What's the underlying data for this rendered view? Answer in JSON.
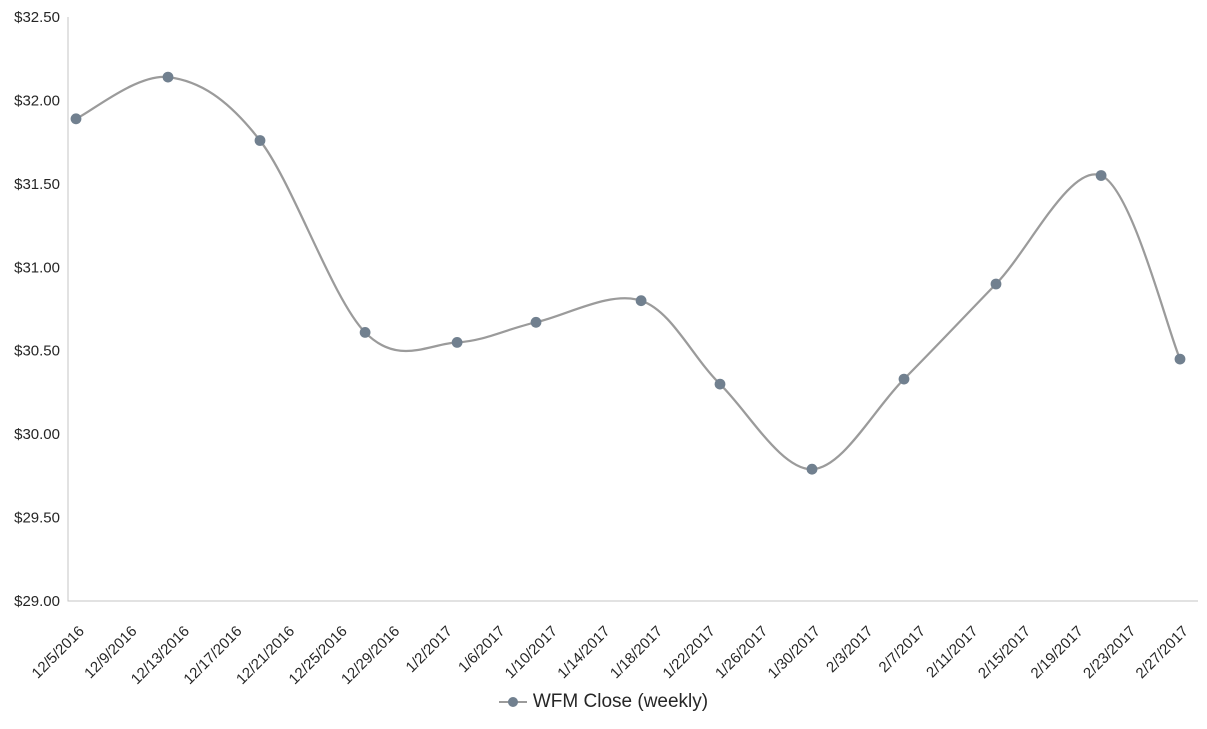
{
  "chart_data": {
    "type": "line",
    "title": "",
    "smooth": true,
    "grid": false,
    "series": [
      {
        "name": "WFM Close (weekly)",
        "points": [
          {
            "date": "12/5/2016",
            "close": 31.89
          },
          {
            "date": "12/12/2016",
            "close": 32.14
          },
          {
            "date": "12/19/2016",
            "close": 31.76
          },
          {
            "date": "12/27/2016",
            "close": 30.61
          },
          {
            "date": "1/3/2017",
            "close": 30.55
          },
          {
            "date": "1/9/2017",
            "close": 30.67
          },
          {
            "date": "1/17/2017",
            "close": 30.8
          },
          {
            "date": "1/23/2017",
            "close": 30.3
          },
          {
            "date": "1/30/2017",
            "close": 29.79
          },
          {
            "date": "2/6/2017",
            "close": 30.33
          },
          {
            "date": "2/13/2017",
            "close": 30.9
          },
          {
            "date": "2/21/2017",
            "close": 31.55
          },
          {
            "date": "2/27/2017",
            "close": 30.45
          }
        ]
      }
    ],
    "x_axis": {
      "type": "date",
      "min": "12/5/2016",
      "max": "2/27/2017",
      "label_rotation_deg": 45,
      "tick_labels": [
        "12/5/2016",
        "12/9/2016",
        "12/13/2016",
        "12/17/2016",
        "12/21/2016",
        "12/25/2016",
        "12/29/2016",
        "1/2/2017",
        "1/6/2017",
        "1/10/2017",
        "1/14/2017",
        "1/18/2017",
        "1/22/2017",
        "1/26/2017",
        "1/30/2017",
        "2/3/2017",
        "2/7/2017",
        "2/11/2017",
        "2/15/2017",
        "2/19/2017",
        "2/23/2017",
        "2/27/2017"
      ]
    },
    "y_axis": {
      "min": 29.0,
      "max": 32.5,
      "step": 0.5,
      "tick_labels": [
        "$29.00",
        "$29.50",
        "$30.00",
        "$30.50",
        "$31.00",
        "$31.50",
        "$32.00",
        "$32.50"
      ]
    },
    "legend": {
      "position": "bottom",
      "label": "WFM Close (weekly)"
    },
    "colors": {
      "line": "#9B9B9B",
      "marker": "#71808F",
      "axis": "#C6C6C6",
      "text": "#262626"
    }
  }
}
